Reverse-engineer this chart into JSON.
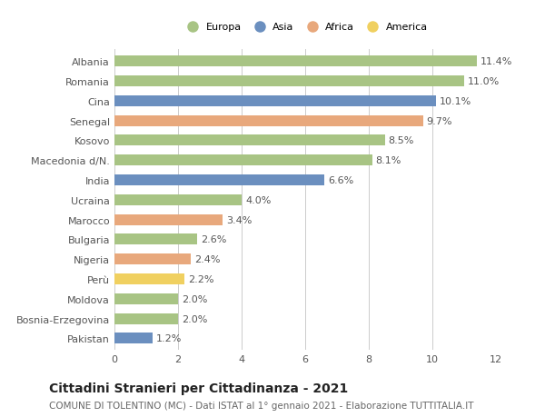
{
  "countries": [
    "Albania",
    "Romania",
    "Cina",
    "Senegal",
    "Kosovo",
    "Macedonia d/N.",
    "India",
    "Ucraina",
    "Marocco",
    "Bulgaria",
    "Nigeria",
    "Perù",
    "Moldova",
    "Bosnia-Erzegovina",
    "Pakistan"
  ],
  "values": [
    11.4,
    11.0,
    10.1,
    9.7,
    8.5,
    8.1,
    6.6,
    4.0,
    3.4,
    2.6,
    2.4,
    2.2,
    2.0,
    2.0,
    1.2
  ],
  "continents": [
    "Europa",
    "Europa",
    "Asia",
    "Africa",
    "Europa",
    "Europa",
    "Asia",
    "Europa",
    "Africa",
    "Europa",
    "Africa",
    "America",
    "Europa",
    "Europa",
    "Asia"
  ],
  "colors": {
    "Europa": "#a8c484",
    "Asia": "#6b8fbf",
    "Africa": "#e8a87c",
    "America": "#f0d060"
  },
  "legend_order": [
    "Europa",
    "Asia",
    "Africa",
    "America"
  ],
  "title_bold": "Cittadini Stranieri per Cittadinanza - 2021",
  "subtitle": "COMUNE DI TOLENTINO (MC) - Dati ISTAT al 1° gennaio 2021 - Elaborazione TUTTITALIA.IT",
  "xlim": [
    0,
    12
  ],
  "xticks": [
    0,
    2,
    4,
    6,
    8,
    10,
    12
  ],
  "background_color": "#ffffff",
  "grid_color": "#cccccc",
  "bar_height": 0.55,
  "label_fontsize": 8,
  "tick_fontsize": 8,
  "title_fontsize": 10,
  "subtitle_fontsize": 7.5
}
